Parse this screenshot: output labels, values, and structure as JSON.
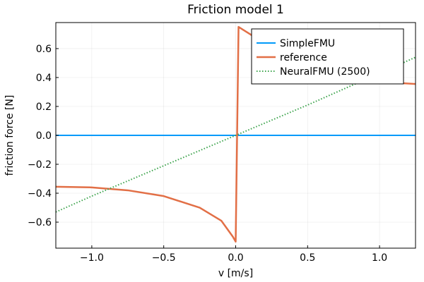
{
  "chart_data": {
    "type": "line",
    "title": "Friction model 1",
    "xlabel": "v [m/s]",
    "ylabel": "friction force [N]",
    "xlim": [
      -1.25,
      1.25
    ],
    "ylim": [
      -0.78,
      0.78
    ],
    "xticks": [
      -1.0,
      -0.5,
      0.0,
      0.5,
      1.0
    ],
    "xtick_labels": [
      "−1.0",
      "−0.5",
      "0.0",
      "0.5",
      "1.0"
    ],
    "yticks": [
      -0.6,
      -0.4,
      -0.2,
      0.0,
      0.2,
      0.4,
      0.6
    ],
    "ytick_labels": [
      "−0.6",
      "−0.4",
      "−0.2",
      "0.0",
      "0.2",
      "0.4",
      "0.6"
    ],
    "grid": true,
    "legend_position": "top-right",
    "series": [
      {
        "name": "SimpleFMU",
        "color": "#009AFA",
        "style": "solid",
        "x": [
          -1.25,
          1.25
        ],
        "y": [
          0.0,
          0.0
        ]
      },
      {
        "name": "reference",
        "color": "#E26F46",
        "style": "solid",
        "x": [
          -1.25,
          -1.0,
          -0.75,
          -0.5,
          -0.25,
          -0.1,
          -0.02,
          0.0,
          0.02,
          0.1,
          0.25,
          0.5,
          0.75,
          1.0,
          1.25
        ],
        "y": [
          -0.355,
          -0.36,
          -0.38,
          -0.42,
          -0.5,
          -0.59,
          -0.7,
          -0.735,
          0.75,
          0.7,
          0.6,
          0.5,
          0.42,
          0.37,
          0.355
        ]
      },
      {
        "name": "NeuralFMU (2500)",
        "color": "#3DA44D",
        "style": "dotted",
        "x": [
          -1.25,
          -1.0,
          -0.5,
          0.0,
          0.5,
          1.0,
          1.25
        ],
        "y": [
          -0.53,
          -0.42,
          -0.21,
          0.0,
          0.21,
          0.43,
          0.54
        ]
      }
    ]
  }
}
